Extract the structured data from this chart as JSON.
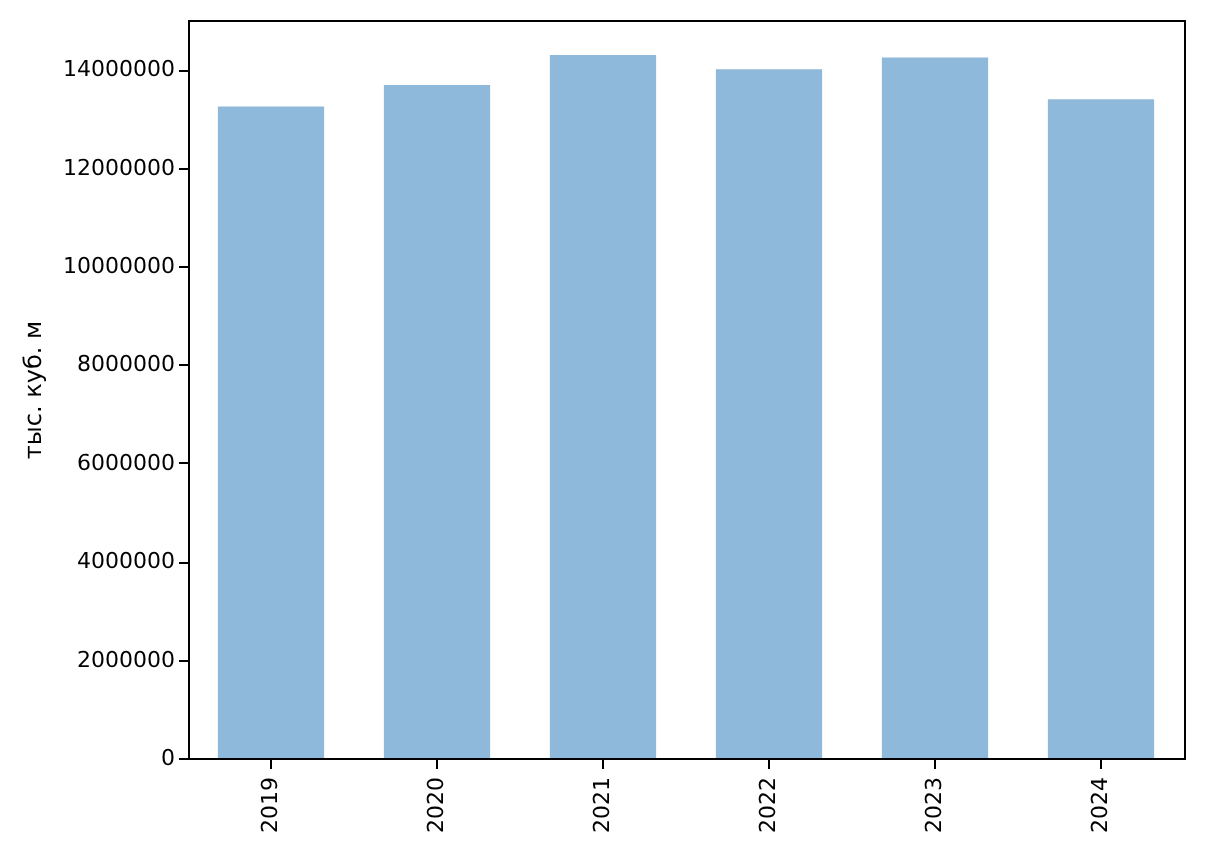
{
  "chart_data": {
    "type": "bar",
    "ylabel": "тыс. куб. м",
    "categories": [
      "2019",
      "2020",
      "2021",
      "2022",
      "2023",
      "2024"
    ],
    "values": [
      13240000,
      13680000,
      14290000,
      14000000,
      14240000,
      13390000
    ],
    "color": "#8fb9da",
    "ylim": [
      0,
      15000000
    ],
    "yticks": [
      0,
      2000000,
      4000000,
      6000000,
      8000000,
      10000000,
      12000000,
      14000000
    ],
    "grid": false
  }
}
